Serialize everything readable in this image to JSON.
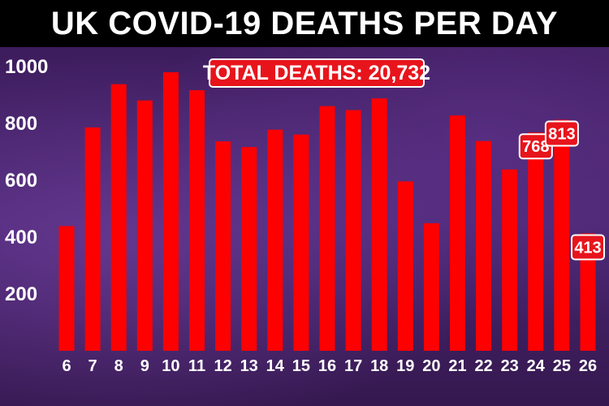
{
  "title": "UK COVID-19 DEATHS PER DAY",
  "total_label": "TOTAL DEATHS: 20,732",
  "colors": {
    "bar": "#ff0000",
    "label_box": "#e8141c",
    "title_bg": "#000000",
    "background": "#3e1e5c"
  },
  "chart_data": {
    "type": "bar",
    "title": "UK COVID-19 DEATHS PER DAY",
    "categories": [
      "6",
      "7",
      "8",
      "9",
      "10",
      "11",
      "12",
      "13",
      "14",
      "15",
      "16",
      "17",
      "18",
      "19",
      "20",
      "21",
      "22",
      "23",
      "24",
      "25",
      "26"
    ],
    "values": [
      439,
      786,
      938,
      881,
      980,
      917,
      737,
      717,
      778,
      761,
      861,
      847,
      888,
      596,
      449,
      828,
      738,
      638,
      768,
      813,
      413
    ],
    "yticks": [
      200,
      400,
      600,
      800,
      1000
    ],
    "ylim": [
      0,
      1000
    ],
    "grid": false,
    "data_labels": [
      {
        "category": "24",
        "text": "768"
      },
      {
        "category": "25",
        "text": "813"
      },
      {
        "category": "26",
        "text": "413"
      }
    ]
  }
}
